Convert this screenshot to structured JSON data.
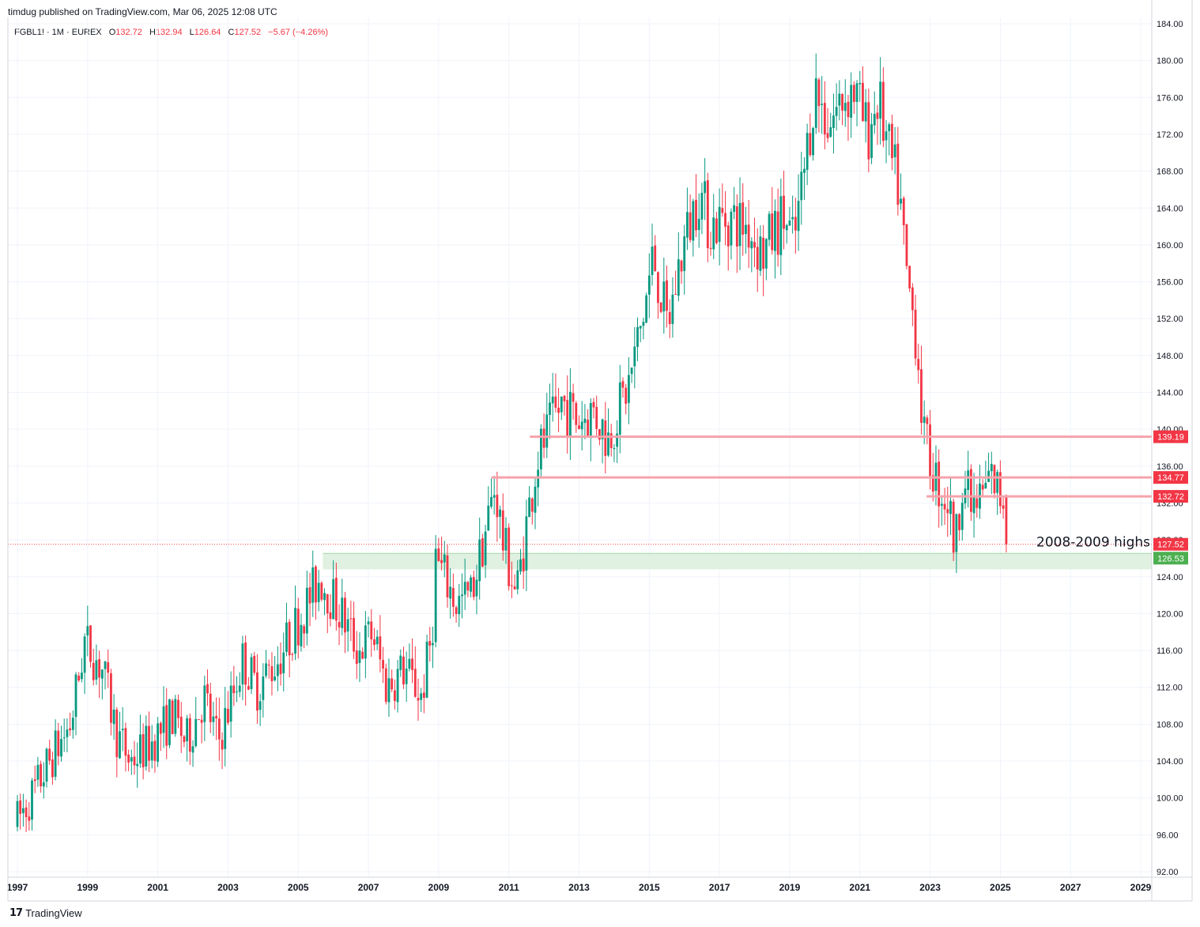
{
  "header": {
    "published": "timdug published on TradingView.com, Mar 06, 2025 12:08 UTC"
  },
  "legend": {
    "symbol": "FGBL1! · 1M · EUREX",
    "open_label": "O",
    "open": "132.72",
    "high_label": "H",
    "high": "132.94",
    "low_label": "L",
    "low": "126.64",
    "close_label": "C",
    "close": "127.52",
    "change": "−5.67 (−4.26%)"
  },
  "brand": {
    "name": "TradingView"
  },
  "colors": {
    "up": "#089981",
    "down": "#f23645",
    "resistance": "#f5a3ab",
    "support_zone": "#dcefdc",
    "support_badge": "#4caf50"
  },
  "chart_data": {
    "type": "candlestick",
    "title": "",
    "ylim": [
      92,
      184
    ],
    "xlim": [
      1997.0,
      2029.7
    ],
    "y_ticks": [
      "184.00",
      "180.00",
      "176.00",
      "172.00",
      "168.00",
      "164.00",
      "160.00",
      "156.00",
      "152.00",
      "148.00",
      "144.00",
      "140.00",
      "136.00",
      "132.00",
      "128.00",
      "124.00",
      "120.00",
      "116.00",
      "112.00",
      "108.00",
      "104.00",
      "100.00",
      "96.00",
      "92.00"
    ],
    "x_ticks": [
      "1997",
      "1999",
      "2001",
      "2003",
      "2005",
      "2007",
      "2009",
      "2011",
      "2013",
      "2015",
      "2017",
      "2019",
      "2021",
      "2023",
      "2025",
      "2027",
      "2029"
    ],
    "price_path": [
      {
        "t": 1997.0,
        "p": 97
      },
      {
        "t": 1997.6,
        "p": 101
      },
      {
        "t": 1998.0,
        "p": 104
      },
      {
        "t": 1998.6,
        "p": 108
      },
      {
        "t": 1999.0,
        "p": 117
      },
      {
        "t": 1999.5,
        "p": 114
      },
      {
        "t": 1999.9,
        "p": 107
      },
      {
        "t": 2000.3,
        "p": 104
      },
      {
        "t": 2000.9,
        "p": 106
      },
      {
        "t": 2001.5,
        "p": 109
      },
      {
        "t": 2001.9,
        "p": 106
      },
      {
        "t": 2002.4,
        "p": 111
      },
      {
        "t": 2002.8,
        "p": 106
      },
      {
        "t": 2003.2,
        "p": 111
      },
      {
        "t": 2003.5,
        "p": 115
      },
      {
        "t": 2003.9,
        "p": 112
      },
      {
        "t": 2004.5,
        "p": 115
      },
      {
        "t": 2005.2,
        "p": 120
      },
      {
        "t": 2005.7,
        "p": 124
      },
      {
        "t": 2006.3,
        "p": 120
      },
      {
        "t": 2006.8,
        "p": 116
      },
      {
        "t": 2007.2,
        "p": 118
      },
      {
        "t": 2007.6,
        "p": 112
      },
      {
        "t": 2008.1,
        "p": 114
      },
      {
        "t": 2008.6,
        "p": 111
      },
      {
        "t": 2008.9,
        "p": 118
      },
      {
        "t": 2009.0,
        "p": 126
      },
      {
        "t": 2009.6,
        "p": 121
      },
      {
        "t": 2010.0,
        "p": 122
      },
      {
        "t": 2010.3,
        "p": 127
      },
      {
        "t": 2010.7,
        "p": 134
      },
      {
        "t": 2010.9,
        "p": 128
      },
      {
        "t": 2011.3,
        "p": 122
      },
      {
        "t": 2011.6,
        "p": 130
      },
      {
        "t": 2011.9,
        "p": 137
      },
      {
        "t": 2012.6,
        "p": 143
      },
      {
        "t": 2013.0,
        "p": 141
      },
      {
        "t": 2013.5,
        "p": 142
      },
      {
        "t": 2013.9,
        "p": 139
      },
      {
        "t": 2014.5,
        "p": 145
      },
      {
        "t": 2014.9,
        "p": 152
      },
      {
        "t": 2015.2,
        "p": 159
      },
      {
        "t": 2015.6,
        "p": 151
      },
      {
        "t": 2016.0,
        "p": 159
      },
      {
        "t": 2016.5,
        "p": 166
      },
      {
        "t": 2016.8,
        "p": 162
      },
      {
        "t": 2017.3,
        "p": 163
      },
      {
        "t": 2017.9,
        "p": 162
      },
      {
        "t": 2018.3,
        "p": 159
      },
      {
        "t": 2018.9,
        "p": 163
      },
      {
        "t": 2019.2,
        "p": 160
      },
      {
        "t": 2019.5,
        "p": 168
      },
      {
        "t": 2019.8,
        "p": 177
      },
      {
        "t": 2020.2,
        "p": 173
      },
      {
        "t": 2020.6,
        "p": 176
      },
      {
        "t": 2020.9,
        "p": 177
      },
      {
        "t": 2021.3,
        "p": 172
      },
      {
        "t": 2021.6,
        "p": 176
      },
      {
        "t": 2021.9,
        "p": 170
      },
      {
        "t": 2022.2,
        "p": 166
      },
      {
        "t": 2022.4,
        "p": 157
      },
      {
        "t": 2022.7,
        "p": 150
      },
      {
        "t": 2022.9,
        "p": 139
      },
      {
        "t": 2023.3,
        "p": 134
      },
      {
        "t": 2023.6,
        "p": 132
      },
      {
        "t": 2023.8,
        "p": 127
      },
      {
        "t": 2024.0,
        "p": 135
      },
      {
        "t": 2024.3,
        "p": 131
      },
      {
        "t": 2024.6,
        "p": 133
      },
      {
        "t": 2024.8,
        "p": 135
      },
      {
        "t": 2025.1,
        "p": 132.7
      }
    ],
    "last_candle": {
      "t": 2025.17,
      "open": 132.72,
      "high": 132.94,
      "low": 126.64,
      "close": 127.52
    },
    "resistance_lines": [
      {
        "value": 139.19,
        "label": "139.19",
        "start": 2011.6
      },
      {
        "value": 134.77,
        "label": "134.77",
        "start": 2010.5
      },
      {
        "value": 132.72,
        "label": "132.72",
        "start": 2022.9
      }
    ],
    "support_zone": {
      "top": 126.53,
      "bottom": 124.8,
      "start": 2005.7,
      "label": "126.53",
      "annotation": "2008-2009 highs"
    },
    "last_price": {
      "value": 127.52,
      "label": "127.52"
    }
  }
}
